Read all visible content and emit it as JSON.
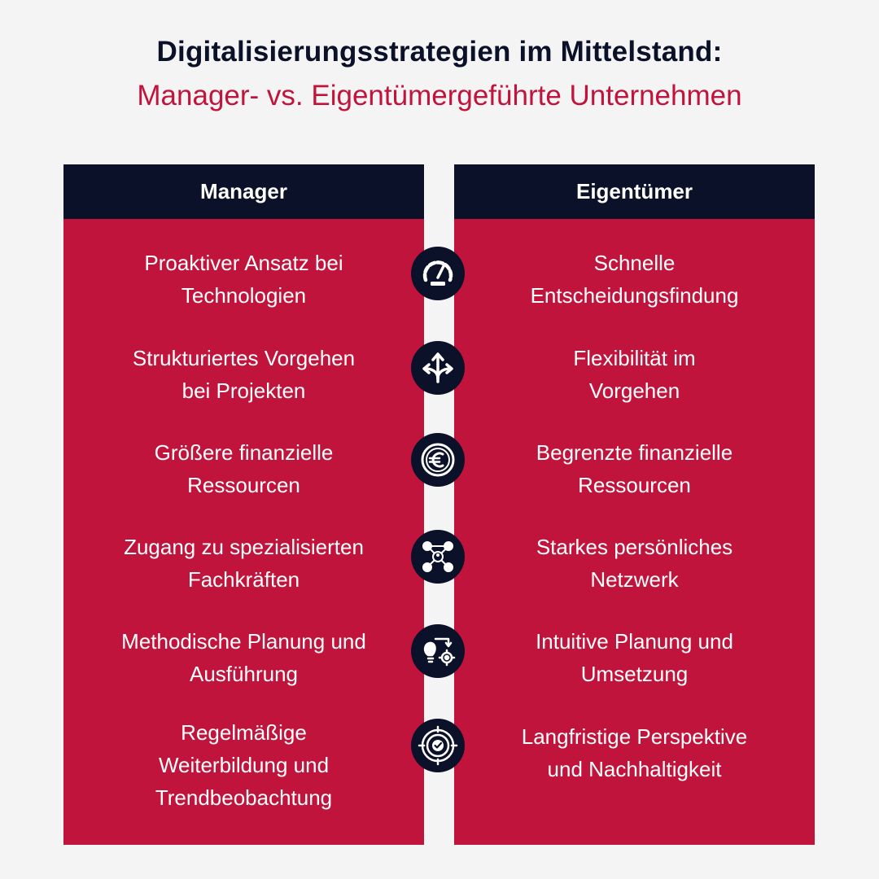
{
  "header": {
    "title": "Digitalisierungsstrategien im Mittelstand:",
    "subtitle": "Manager- vs. Eigentümergeführte Unternehmen"
  },
  "columns": {
    "left": {
      "heading": "Manager",
      "items": [
        "Proaktiver Ansatz bei\nTechnologien",
        "Strukturiertes Vorgehen\nbei Projekten",
        "Größere finanzielle\nRessourcen",
        "Zugang zu spezialisierten\nFachkräften",
        "Methodische Planung und\nAusführung",
        "Regelmäßige\nWeiterbildung und\nTrendbeobachtung"
      ]
    },
    "right": {
      "heading": "Eigentümer",
      "items": [
        "Schnelle\nEntscheidungsfindung",
        "Flexibilität im\nVorgehen",
        "Begrenzte finanzielle\nRessourcen",
        "Starkes persönliches\nNetzwerk",
        "Intuitive Planung und\nUmsetzung",
        "Langfristige Perspektive\nund Nachhaltigkeit"
      ]
    }
  },
  "icons": [
    "speedometer-icon",
    "split-arrows-icon",
    "euro-icon",
    "network-people-icon",
    "idea-gear-icon",
    "target-check-icon"
  ],
  "colors": {
    "navy": "#0b1128",
    "crimson": "#c0143c",
    "background": "#f4f4f4",
    "text_light": "#ffffff"
  }
}
